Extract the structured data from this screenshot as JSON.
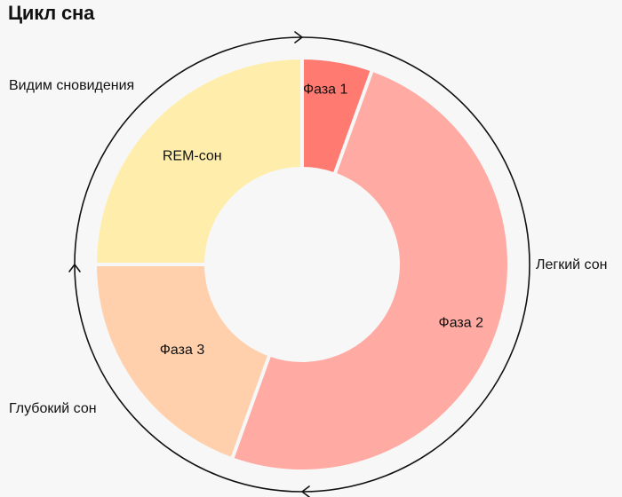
{
  "title": "Цикл сна",
  "outer_labels": {
    "dreaming": "Видим сновидения",
    "light_sleep": "Легкий сон",
    "deep_sleep": "Глубокий сон"
  },
  "colors": {
    "phase1": "#ff7a70",
    "phase2": "#ffaaa2",
    "phase3": "#ffd0ab",
    "rem": "#ffeeab",
    "ring": "#111111",
    "background": "#f7f7f7"
  },
  "chart_data": {
    "type": "pie",
    "variant": "donut",
    "title": "Цикл сна",
    "direction": "clockwise-from-top",
    "slices": [
      {
        "label": "Фаза 1",
        "value": 5.5
      },
      {
        "label": "Фаза 2",
        "value": 50
      },
      {
        "label": "Фаза 3",
        "value": 19.5
      },
      {
        "label": "REM-сон",
        "value": 25
      }
    ],
    "groups": [
      {
        "label": "Легкий сон",
        "slices": [
          "Фаза 1",
          "Фаза 2"
        ]
      },
      {
        "label": "Глубокий сон",
        "slices": [
          "Фаза 3"
        ]
      },
      {
        "label": "Видим сновидения",
        "slices": [
          "REM-сон"
        ]
      }
    ]
  }
}
